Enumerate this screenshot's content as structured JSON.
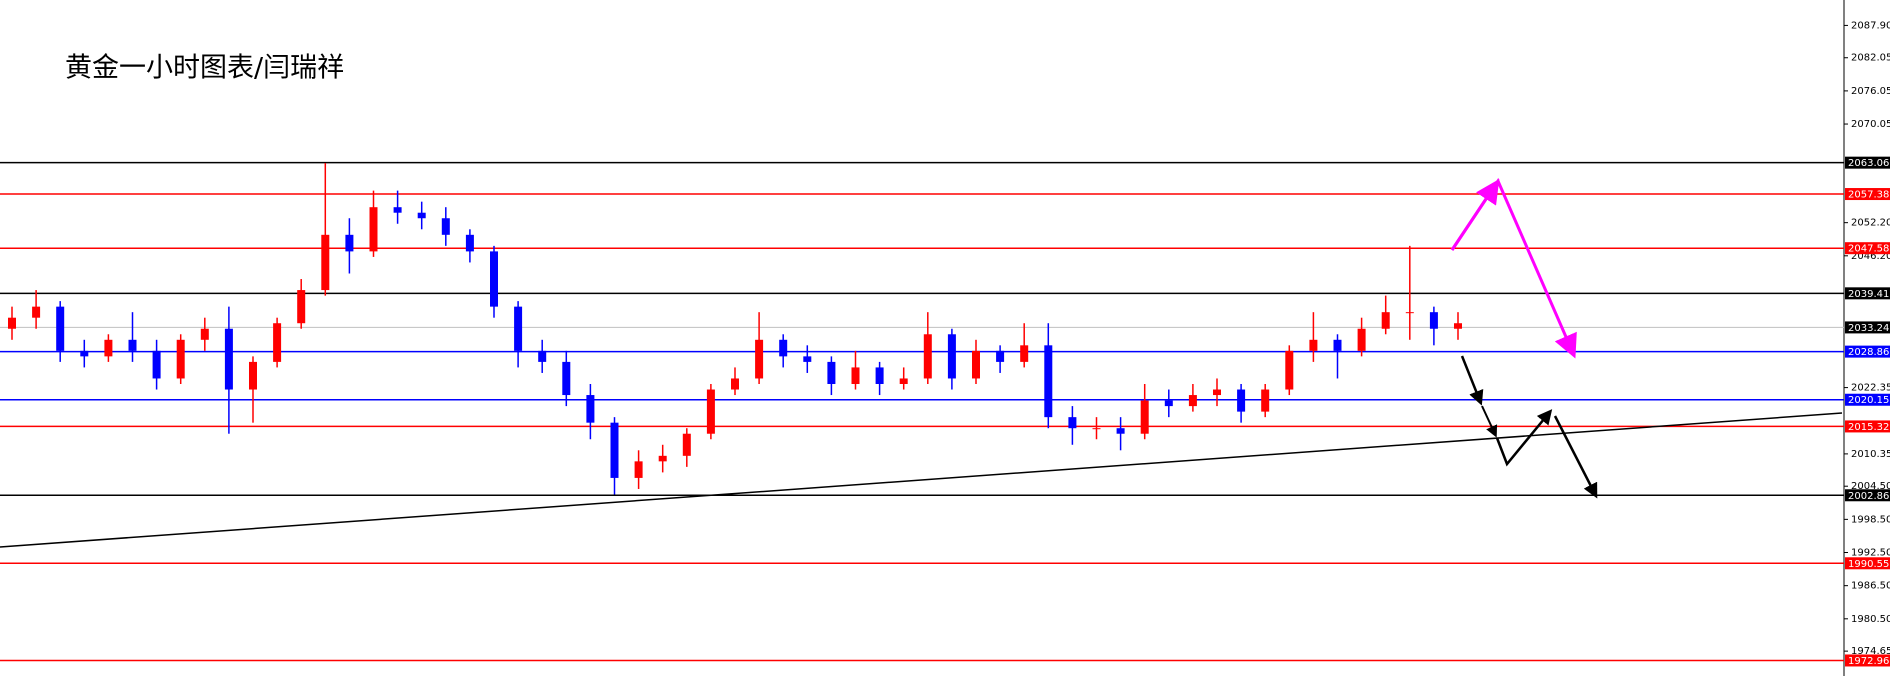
{
  "chart_data": {
    "type": "candlestick",
    "title": "黄金一小时图表/闫瑞祥",
    "ylim": [
      1970.15,
      2092.5
    ],
    "yticks": [
      {
        "value": 2087.9,
        "label": "2087.90"
      },
      {
        "value": 2082.05,
        "label": "2082.05"
      },
      {
        "value": 2076.05,
        "label": "2076.05"
      },
      {
        "value": 2070.05,
        "label": "2070.05"
      },
      {
        "value": 2052.2,
        "label": "2052.20"
      },
      {
        "value": 2046.2,
        "label": "2046.20"
      },
      {
        "value": 2022.35,
        "label": "2022.35"
      },
      {
        "value": 2010.35,
        "label": "2010.35"
      },
      {
        "value": 2004.5,
        "label": "2004.50"
      },
      {
        "value": 1998.5,
        "label": "1998.50"
      },
      {
        "value": 1992.5,
        "label": "1992.50"
      },
      {
        "value": 1986.5,
        "label": "1986.50"
      },
      {
        "value": 1980.5,
        "label": "1980.50"
      },
      {
        "value": 1974.65,
        "label": "1974.65"
      }
    ],
    "up_color": "#ff0000",
    "down_color": "#0000ff",
    "levels": [
      {
        "value": 2063.06,
        "color": "#000000"
      },
      {
        "value": 2057.38,
        "color": "#ff0000"
      },
      {
        "value": 2047.58,
        "color": "#ff0000"
      },
      {
        "value": 2039.41,
        "color": "#000000"
      },
      {
        "value": 2033.24,
        "color": "#c0c0c0"
      },
      {
        "value": 2028.86,
        "color": "#0000ff"
      },
      {
        "value": 2020.15,
        "color": "#0000ff"
      },
      {
        "value": 2015.32,
        "color": "#ff0000"
      },
      {
        "value": 2002.86,
        "color": "#000000"
      },
      {
        "value": 1990.55,
        "color": "#ff0000"
      },
      {
        "value": 1972.96,
        "color": "#ff0000"
      }
    ],
    "candles": [
      [
        2033,
        2037,
        2031,
        2035
      ],
      [
        2035,
        2040,
        2033,
        2037
      ],
      [
        2037,
        2038,
        2027,
        2029
      ],
      [
        2029,
        2031,
        2026,
        2028
      ],
      [
        2028,
        2032,
        2027,
        2031
      ],
      [
        2031,
        2036,
        2027,
        2029
      ],
      [
        2029,
        2031,
        2022,
        2024
      ],
      [
        2024,
        2032,
        2023,
        2031
      ],
      [
        2031,
        2035,
        2029,
        2033
      ],
      [
        2033,
        2037,
        2014,
        2022
      ],
      [
        2022,
        2028,
        2016,
        2027
      ],
      [
        2027,
        2035,
        2026,
        2034
      ],
      [
        2034,
        2042,
        2033,
        2040
      ],
      [
        2040,
        2063,
        2039,
        2050
      ],
      [
        2050,
        2053,
        2043,
        2047
      ],
      [
        2047,
        2058,
        2046,
        2055
      ],
      [
        2055,
        2058,
        2052,
        2054
      ],
      [
        2054,
        2056,
        2051,
        2053
      ],
      [
        2053,
        2055,
        2048,
        2050
      ],
      [
        2050,
        2051,
        2045,
        2047
      ],
      [
        2047,
        2048,
        2035,
        2037
      ],
      [
        2037,
        2038,
        2026,
        2029
      ],
      [
        2029,
        2031,
        2025,
        2027
      ],
      [
        2027,
        2029,
        2019,
        2021
      ],
      [
        2021,
        2023,
        2013,
        2016
      ],
      [
        2016,
        2017,
        2003,
        2006
      ],
      [
        2006,
        2011,
        2004,
        2009
      ],
      [
        2009,
        2012,
        2007,
        2010
      ],
      [
        2010,
        2015,
        2008,
        2014
      ],
      [
        2014,
        2023,
        2013,
        2022
      ],
      [
        2022,
        2026,
        2021,
        2024
      ],
      [
        2024,
        2036,
        2023,
        2031
      ],
      [
        2031,
        2032,
        2026,
        2028
      ],
      [
        2028,
        2030,
        2025,
        2027
      ],
      [
        2027,
        2028,
        2021,
        2023
      ],
      [
        2023,
        2029,
        2022,
        2026
      ],
      [
        2026,
        2027,
        2021,
        2023
      ],
      [
        2023,
        2026,
        2022,
        2024
      ],
      [
        2024,
        2036,
        2023,
        2032
      ],
      [
        2032,
        2033,
        2022,
        2024
      ],
      [
        2024,
        2031,
        2023,
        2029
      ],
      [
        2029,
        2030,
        2025,
        2027
      ],
      [
        2027,
        2034,
        2026,
        2030
      ],
      [
        2030,
        2034,
        2015,
        2017
      ],
      [
        2017,
        2019,
        2012,
        2015
      ],
      [
        2015,
        2017,
        2013,
        2015
      ],
      [
        2015,
        2017,
        2011,
        2014
      ],
      [
        2014,
        2023,
        2013,
        2020
      ],
      [
        2020,
        2022,
        2017,
        2019
      ],
      [
        2019,
        2023,
        2018,
        2021
      ],
      [
        2021,
        2024,
        2019,
        2022
      ],
      [
        2022,
        2023,
        2016,
        2018
      ],
      [
        2018,
        2023,
        2017,
        2022
      ],
      [
        2022,
        2030,
        2021,
        2029
      ],
      [
        2029,
        2036,
        2027,
        2031
      ],
      [
        2031,
        2032,
        2024,
        2029
      ],
      [
        2029,
        2035,
        2028,
        2033
      ],
      [
        2033,
        2039,
        2032,
        2036
      ],
      [
        2036,
        2048,
        2031,
        2036
      ],
      [
        2036,
        2037,
        2030,
        2033
      ],
      [
        2033,
        2036,
        2031,
        2034
      ]
    ]
  }
}
